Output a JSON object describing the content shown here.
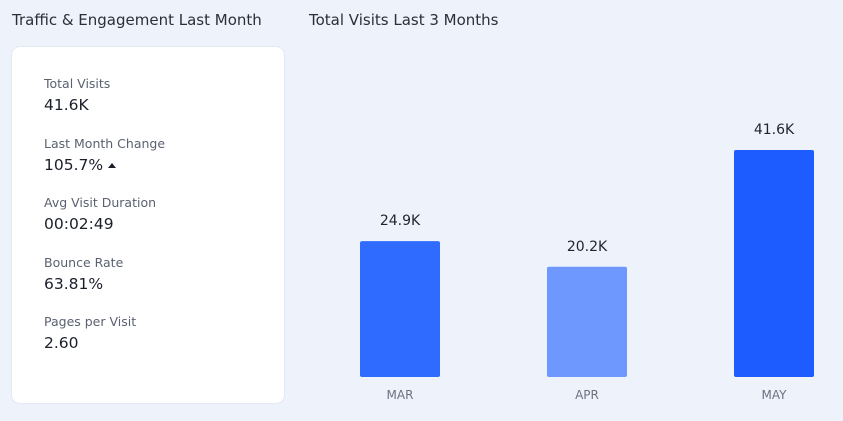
{
  "headings": {
    "left": "Traffic & Engagement Last Month",
    "right": "Total Visits Last 3 Months"
  },
  "metrics": [
    {
      "label": "Total Visits",
      "value": "41.6K"
    },
    {
      "label": "Last Month Change",
      "value": "105.7%",
      "trend_icon": "triangle-up-icon"
    },
    {
      "label": "Avg Visit Duration",
      "value": "00:02:49"
    },
    {
      "label": "Bounce Rate",
      "value": "63.81%"
    },
    {
      "label": "Pages per Visit",
      "value": "2.60"
    }
  ],
  "chart_data": {
    "type": "bar",
    "title": "Total Visits Last 3 Months",
    "categories": [
      "MAR",
      "APR",
      "MAY"
    ],
    "values": [
      24900,
      20200,
      41600
    ],
    "value_labels": [
      "24.9K",
      "20.2K",
      "41.6K"
    ],
    "bar_colors": [
      "#2f6bff",
      "#6f98ff",
      "#1d5cff"
    ],
    "xlabel": "",
    "ylabel": "",
    "grid": false,
    "legend": "none"
  }
}
